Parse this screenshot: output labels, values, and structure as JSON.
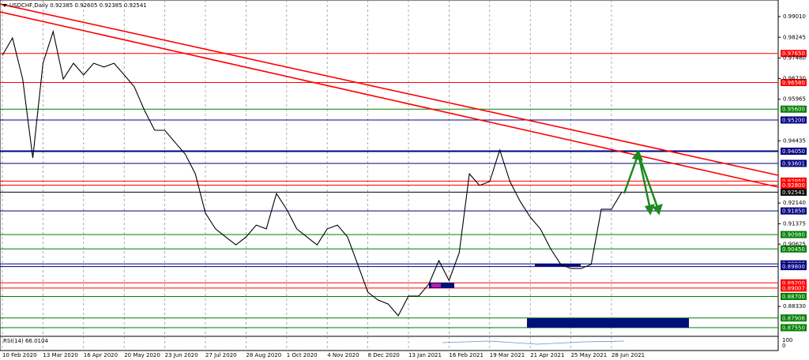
{
  "chart_data": {
    "type": "line",
    "title": "USDCHF,Daily  0.92385 0.92605 0.92385 0.92541",
    "indicator_label": "RSI(14) 66.0104",
    "indicator_ticks": [
      "100",
      "0"
    ],
    "color": "#000000",
    "categories": [
      "10 Feb 2020",
      null,
      null,
      null,
      "13 Mar 2020",
      null,
      null,
      null,
      "16 Apr 2020",
      null,
      null,
      null,
      "20 May 2020",
      null,
      null,
      null,
      "23 Jun 2020",
      null,
      null,
      null,
      "27 Jul 2020",
      null,
      null,
      null,
      "28 Aug 2020",
      null,
      null,
      null,
      "1 Oct 2020",
      null,
      null,
      null,
      "4 Nov 2020",
      null,
      null,
      null,
      "8 Dec 2020",
      null,
      null,
      null,
      "13 Jan 2021",
      null,
      null,
      null,
      "16 Feb 2021",
      null,
      null,
      null,
      "19 Mar 2021",
      null,
      null,
      null,
      "21 Apr 2021",
      null,
      null,
      null,
      "25 May 2021",
      null,
      null,
      null,
      "28 Jun 2021",
      null
    ],
    "values": [
      0.9758,
      0.9822,
      0.9671,
      0.938,
      0.9729,
      0.9846,
      0.9671,
      0.9729,
      0.9686,
      0.9729,
      0.9715,
      0.9729,
      0.9686,
      0.9642,
      0.9555,
      0.9482,
      0.9482,
      0.9438,
      0.9395,
      0.9322,
      0.9177,
      0.9119,
      0.9089,
      0.906,
      0.9089,
      0.9133,
      0.9119,
      0.9249,
      0.9191,
      0.9119,
      0.9089,
      0.906,
      0.9119,
      0.9133,
      0.9089,
      0.8988,
      0.8886,
      0.8857,
      0.8842,
      0.8799,
      0.8871,
      0.8871,
      0.8915,
      0.9002,
      0.8929,
      0.9031,
      0.9322,
      0.9279,
      0.9293,
      0.9409,
      0.9293,
      0.922,
      0.9162,
      0.9119,
      0.9046,
      0.8988,
      0.8973,
      0.8973,
      0.8988,
      0.9191,
      0.9191,
      0.92541
    ],
    "ylim": [
      0.8726,
      0.9962
    ],
    "yticks": [
      {
        "value": 0.9901,
        "label": "0.99010"
      },
      {
        "value": 0.98245,
        "label": "0.98245"
      },
      {
        "value": 0.9748,
        "label": "0.97480"
      },
      {
        "value": 0.9673,
        "label": "0.96730"
      },
      {
        "value": 0.95965,
        "label": "0.95965"
      },
      {
        "value": 0.94435,
        "label": "0.94435"
      },
      {
        "value": 0.9214,
        "label": "0.92140"
      },
      {
        "value": 0.91375,
        "label": "0.91375"
      },
      {
        "value": 0.90625,
        "label": "0.90625"
      },
      {
        "value": 0.8833,
        "label": "0.88330"
      }
    ],
    "levels": [
      {
        "value": 0.9765,
        "label": "0.97650",
        "color": "#ff0000"
      },
      {
        "value": 0.9658,
        "label": "0.96580",
        "color": "#ff0000"
      },
      {
        "value": 0.956,
        "label": "0.95600",
        "color": "#008000"
      },
      {
        "value": 0.952,
        "label": "0.95200",
        "color": "#000080"
      },
      {
        "value": 0.9405,
        "label": "0.94050",
        "color": "#000080"
      },
      {
        "value": 0.93601,
        "label": "0.93601",
        "color": "#000080"
      },
      {
        "value": 0.9295,
        "label": "0.92950",
        "color": "#ff0000"
      },
      {
        "value": 0.928,
        "label": "0.92800",
        "color": "#ff0000"
      },
      {
        "value": 0.92541,
        "label": "0.92541",
        "color": "#000000"
      },
      {
        "value": 0.9185,
        "label": "0.91850",
        "color": "#000080"
      },
      {
        "value": 0.9098,
        "label": "0.90980",
        "color": "#008000"
      },
      {
        "value": 0.9045,
        "label": "0.90450",
        "color": "#008000"
      },
      {
        "value": 0.899,
        "label": "0.89900",
        "color": "#000080"
      },
      {
        "value": 0.898,
        "label": "0.89800",
        "color": "#000080"
      },
      {
        "value": 0.892,
        "label": "0.89200",
        "color": "#ff0000"
      },
      {
        "value": 0.89007,
        "label": "0.89007",
        "color": "#ff0000"
      },
      {
        "value": 0.887,
        "label": "0.88700",
        "color": "#008000"
      },
      {
        "value": 0.87906,
        "label": "0.87906",
        "color": "#008000"
      },
      {
        "value": 0.8755,
        "label": "0.87550",
        "color": "#008000"
      }
    ]
  }
}
